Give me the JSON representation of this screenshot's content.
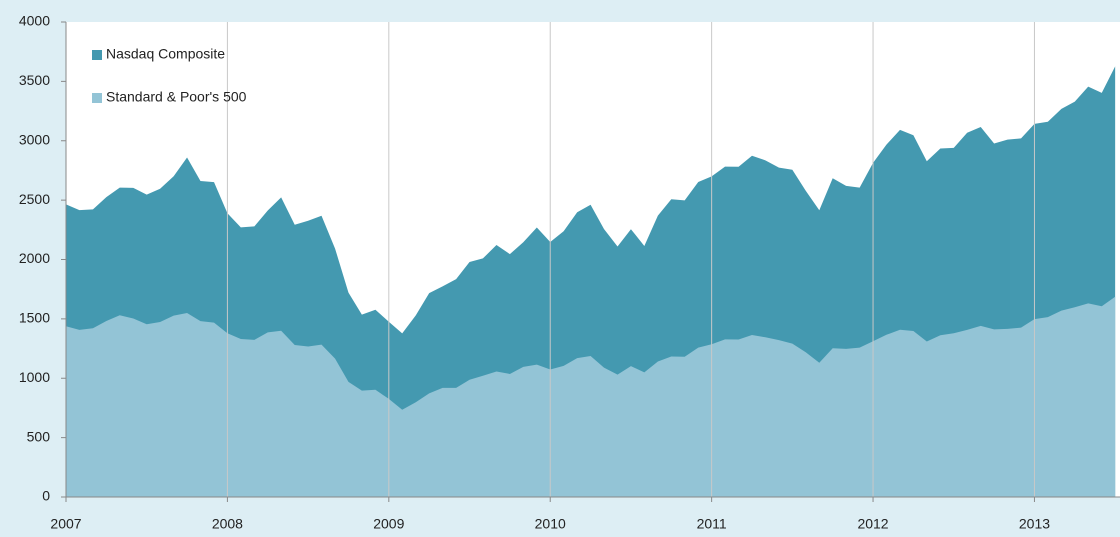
{
  "chart_data": {
    "type": "area",
    "x": [
      2007,
      2007.083,
      2007.167,
      2007.25,
      2007.333,
      2007.417,
      2007.5,
      2007.583,
      2007.667,
      2007.75,
      2007.833,
      2007.917,
      2008,
      2008.083,
      2008.167,
      2008.25,
      2008.333,
      2008.417,
      2008.5,
      2008.583,
      2008.667,
      2008.75,
      2008.833,
      2008.917,
      2009,
      2009.083,
      2009.167,
      2009.25,
      2009.333,
      2009.417,
      2009.5,
      2009.583,
      2009.667,
      2009.75,
      2009.833,
      2009.917,
      2010,
      2010.083,
      2010.167,
      2010.25,
      2010.333,
      2010.417,
      2010.5,
      2010.583,
      2010.667,
      2010.75,
      2010.833,
      2010.917,
      2011,
      2011.083,
      2011.167,
      2011.25,
      2011.333,
      2011.417,
      2011.5,
      2011.583,
      2011.667,
      2011.75,
      2011.833,
      2011.917,
      2012,
      2012.083,
      2012.167,
      2012.25,
      2012.333,
      2012.417,
      2012.5,
      2012.583,
      2012.667,
      2012.75,
      2012.833,
      2012.917,
      2013,
      2013.083,
      2013.167,
      2013.25,
      2013.333,
      2013.417,
      2013.5
    ],
    "series": [
      {
        "name": "Nasdaq Composite",
        "color": "#4499b0",
        "values": [
          2464,
          2416,
          2422,
          2525,
          2605,
          2603,
          2546,
          2596,
          2701,
          2859,
          2661,
          2652,
          2390,
          2271,
          2279,
          2413,
          2523,
          2293,
          2326,
          2368,
          2092,
          1721,
          1536,
          1577,
          1476,
          1378,
          1529,
          1717,
          1774,
          1835,
          1979,
          2009,
          2122,
          2045,
          2145,
          2269,
          2147,
          2238,
          2398,
          2461,
          2257,
          2109,
          2255,
          2114,
          2369,
          2507,
          2498,
          2653,
          2700,
          2782,
          2781,
          2874,
          2835,
          2774,
          2756,
          2579,
          2415,
          2684,
          2620,
          2605,
          2814,
          2967,
          3092,
          3046,
          2827,
          2935,
          2940,
          3067,
          3116,
          2977,
          3010,
          3020,
          3142,
          3160,
          3268,
          3329,
          3456,
          3403,
          3626
        ]
      },
      {
        "name": "Standard & Poor's 500",
        "color": "#93c4d6",
        "values": [
          1438,
          1407,
          1421,
          1482,
          1531,
          1503,
          1455,
          1474,
          1527,
          1549,
          1481,
          1468,
          1379,
          1331,
          1323,
          1386,
          1400,
          1280,
          1267,
          1283,
          1165,
          969,
          896,
          903,
          826,
          735,
          798,
          873,
          919,
          919,
          987,
          1021,
          1057,
          1036,
          1096,
          1115,
          1074,
          1104,
          1169,
          1187,
          1089,
          1031,
          1102,
          1049,
          1141,
          1183,
          1181,
          1258,
          1286,
          1327,
          1326,
          1364,
          1345,
          1321,
          1292,
          1219,
          1131,
          1253,
          1247,
          1258,
          1312,
          1366,
          1408,
          1398,
          1310,
          1362,
          1379,
          1407,
          1441,
          1412,
          1416,
          1426,
          1498,
          1515,
          1569,
          1598,
          1631,
          1606,
          1686
        ]
      }
    ],
    "xlim": [
      2007,
      2013.53
    ],
    "xticks": [
      2007,
      2008,
      2009,
      2010,
      2011,
      2012,
      2013
    ],
    "ylim": [
      0,
      4000
    ],
    "yticks": [
      0,
      500,
      1000,
      1500,
      2000,
      2500,
      3000,
      3500,
      4000
    ],
    "grid": "x",
    "legend": "upper left"
  }
}
